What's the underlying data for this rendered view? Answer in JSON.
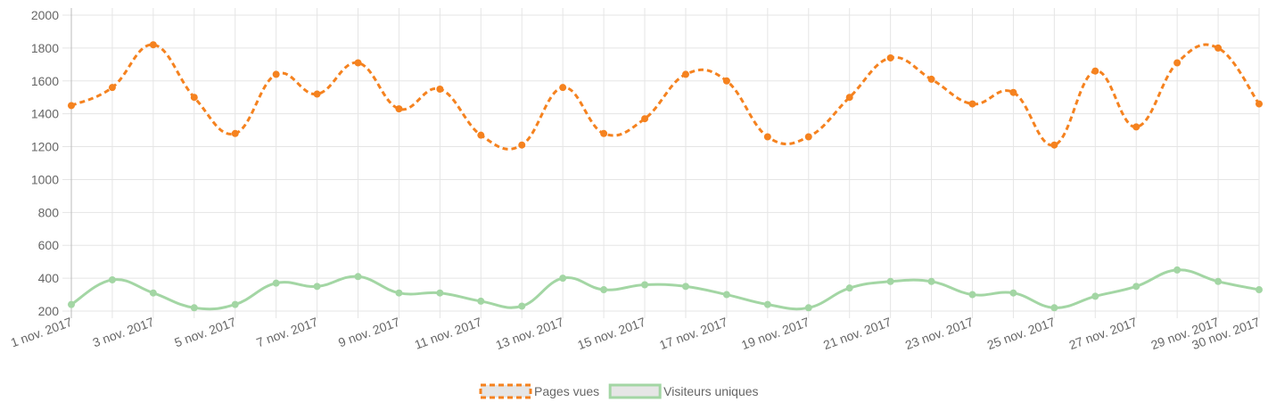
{
  "chart_data": {
    "type": "line",
    "categories": [
      "1 nov. 2017",
      null,
      "3 nov. 2017",
      null,
      "5 nov. 2017",
      null,
      "7 nov. 2017",
      null,
      "9 nov. 2017",
      null,
      "11 nov. 2017",
      null,
      "13 nov. 2017",
      null,
      "15 nov. 2017",
      null,
      "17 nov. 2017",
      null,
      "19 nov. 2017",
      null,
      "21 nov. 2017",
      null,
      "23 nov. 2017",
      null,
      "25 nov. 2017",
      null,
      "27 nov. 2017",
      null,
      "29 nov. 2017",
      "30 nov. 2017"
    ],
    "series": [
      {
        "name": "Pages vues",
        "color": "#f5821f",
        "dashed": true,
        "values": [
          1450,
          1560,
          1820,
          1500,
          1280,
          1640,
          1520,
          1710,
          1430,
          1550,
          1270,
          1210,
          1560,
          1280,
          1370,
          1640,
          1600,
          1260,
          1260,
          1500,
          1740,
          1610,
          1460,
          1530,
          1210,
          1660,
          1320,
          1710,
          1800,
          1460
        ]
      },
      {
        "name": "Visiteurs uniques",
        "color": "#a3d6a4",
        "dashed": false,
        "values": [
          240,
          390,
          310,
          220,
          240,
          370,
          350,
          410,
          310,
          310,
          260,
          230,
          400,
          330,
          360,
          350,
          300,
          240,
          220,
          340,
          380,
          380,
          300,
          310,
          220,
          290,
          350,
          450,
          380,
          330
        ]
      }
    ],
    "ylim": [
      200,
      2000
    ],
    "yticks": [
      200,
      400,
      600,
      800,
      1000,
      1200,
      1400,
      1600,
      1800,
      2000
    ],
    "grid": true,
    "legend": "bottom"
  }
}
